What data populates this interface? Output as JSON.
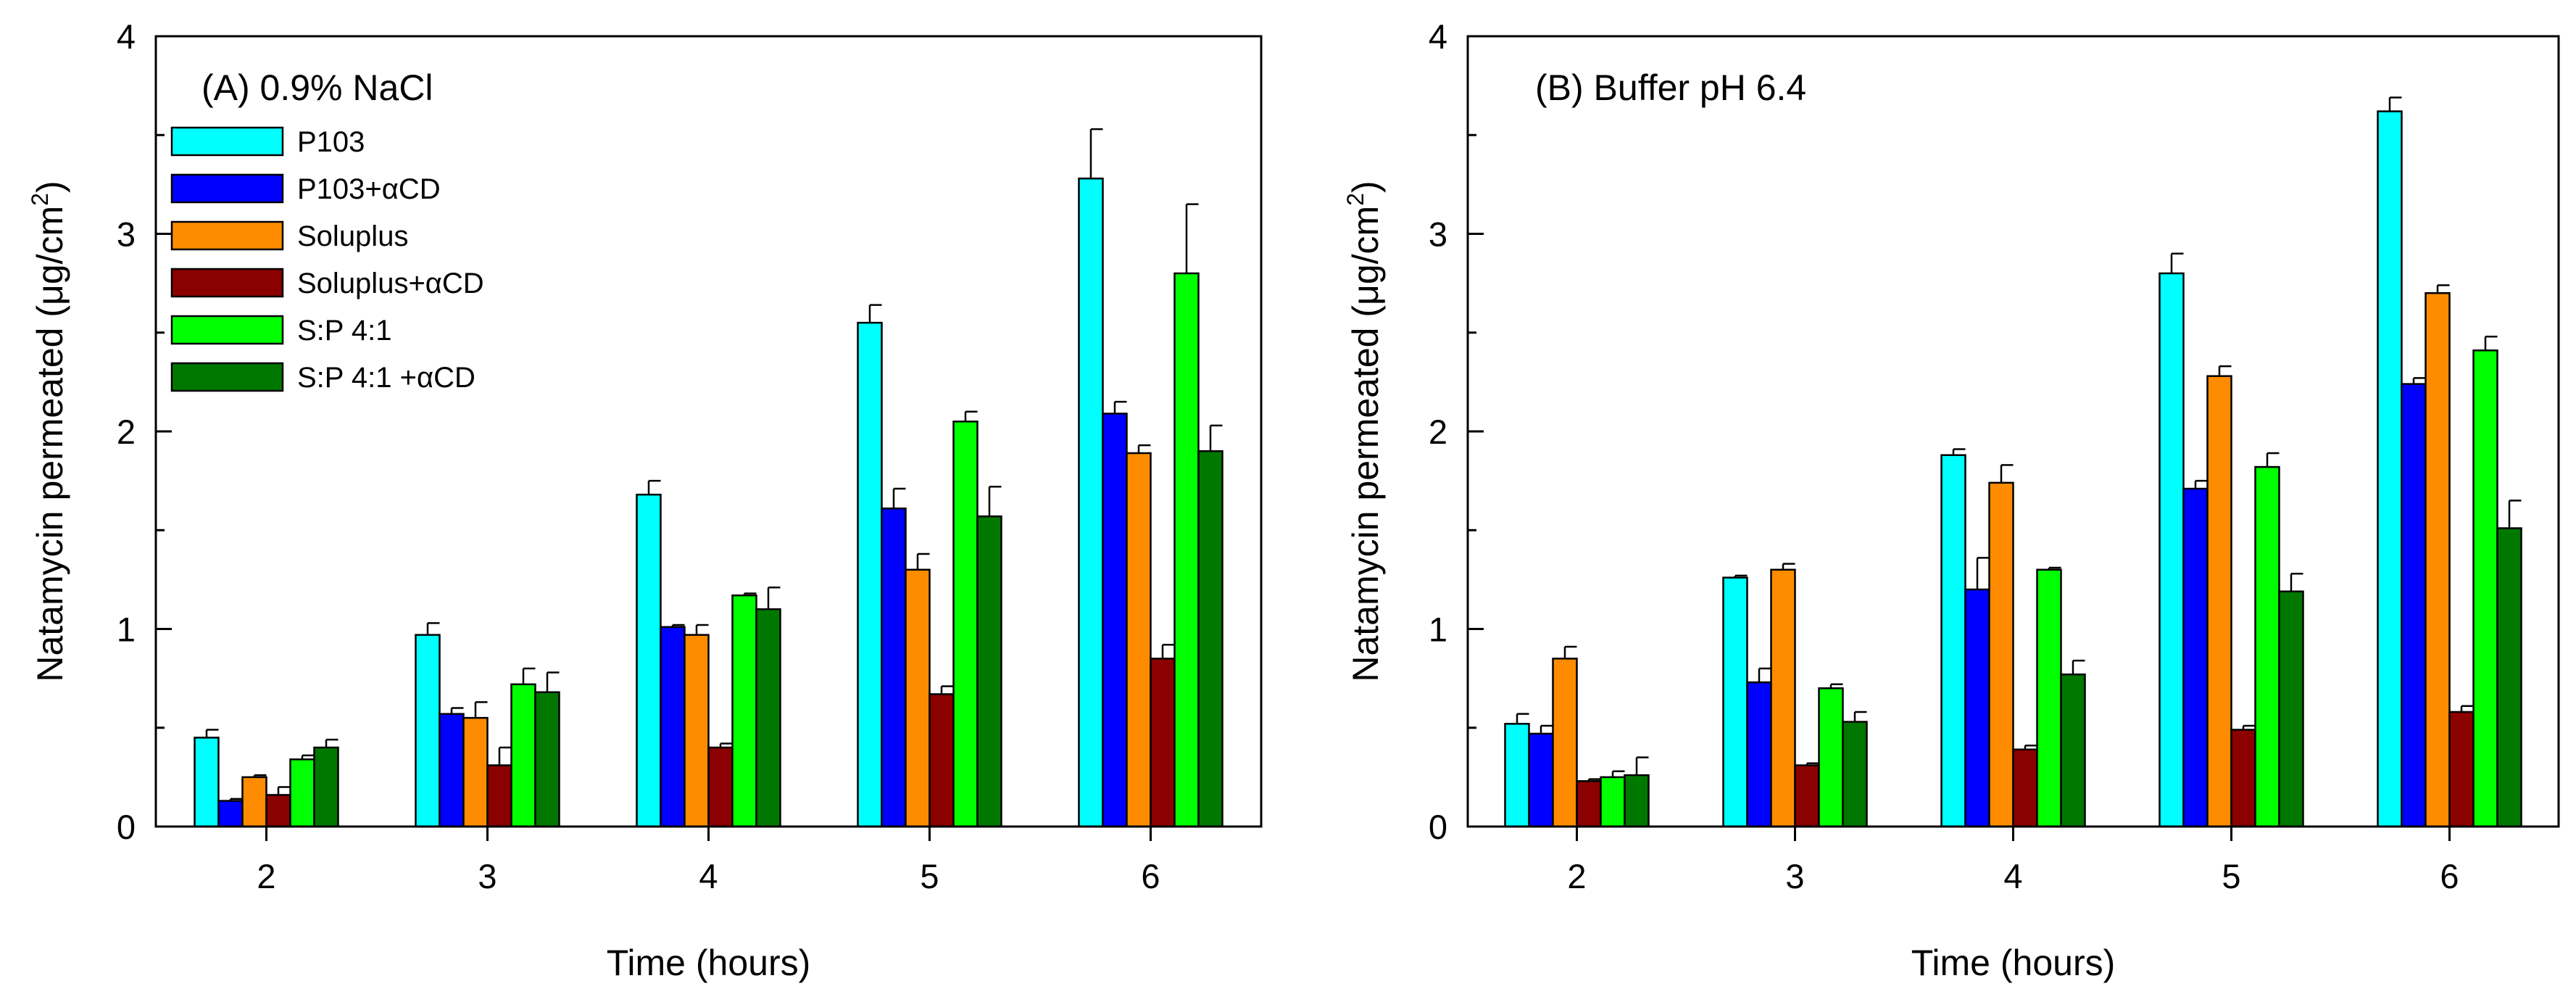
{
  "chart_data": [
    {
      "type": "bar",
      "panel_label": "(A) 0.9% NaCl",
      "xlabel": "Time (hours)",
      "ylabel_main": "Natamycin permeated (μg/cm",
      "ylabel_sup": "2",
      "ylabel_end": ")",
      "ylim": [
        0,
        4
      ],
      "yticks": [
        "0",
        "1",
        "2",
        "3",
        "4"
      ],
      "categories": [
        "2",
        "3",
        "4",
        "5",
        "6"
      ],
      "legend_position": "top-left",
      "series": [
        {
          "name": "P103",
          "color": "#00FFFF",
          "values": [
            0.45,
            0.97,
            1.68,
            2.55,
            3.28
          ],
          "errors": [
            0.04,
            0.06,
            0.07,
            0.09,
            0.25
          ]
        },
        {
          "name": "P103+αCD",
          "color": "#0000FF",
          "values": [
            0.13,
            0.57,
            1.01,
            1.61,
            2.09
          ],
          "errors": [
            0.01,
            0.03,
            0.01,
            0.1,
            0.06
          ]
        },
        {
          "name": "Soluplus",
          "color": "#FF8C00",
          "values": [
            0.25,
            0.55,
            0.97,
            1.3,
            1.89
          ],
          "errors": [
            0.01,
            0.08,
            0.05,
            0.08,
            0.04
          ]
        },
        {
          "name": "Soluplus+αCD",
          "color": "#8B0000",
          "values": [
            0.16,
            0.31,
            0.4,
            0.67,
            0.85
          ],
          "errors": [
            0.04,
            0.09,
            0.02,
            0.04,
            0.07
          ]
        },
        {
          "name": "S:P 4:1",
          "color": "#00FF00",
          "values": [
            0.34,
            0.72,
            1.17,
            2.05,
            2.8
          ],
          "errors": [
            0.02,
            0.08,
            0.01,
            0.05,
            0.35
          ]
        },
        {
          "name": "S:P 4:1 +αCD",
          "color": "#007800",
          "values": [
            0.4,
            0.68,
            1.1,
            1.57,
            1.9
          ],
          "errors": [
            0.04,
            0.1,
            0.11,
            0.15,
            0.13
          ]
        }
      ]
    },
    {
      "type": "bar",
      "panel_label": "(B) Buffer pH 6.4",
      "xlabel": "Time (hours)",
      "ylabel_main": "Natamycin permeated (μg/cm",
      "ylabel_sup": "2",
      "ylabel_end": ")",
      "ylim": [
        0,
        4
      ],
      "yticks": [
        "0",
        "1",
        "2",
        "3",
        "4"
      ],
      "categories": [
        "2",
        "3",
        "4",
        "5",
        "6"
      ],
      "legend_position": "none",
      "series": [
        {
          "name": "P103",
          "color": "#00FFFF",
          "values": [
            0.52,
            1.26,
            1.88,
            2.8,
            3.62
          ],
          "errors": [
            0.05,
            0.01,
            0.03,
            0.1,
            0.07
          ]
        },
        {
          "name": "P103+αCD",
          "color": "#0000FF",
          "values": [
            0.47,
            0.73,
            1.2,
            1.71,
            2.24
          ],
          "errors": [
            0.04,
            0.07,
            0.16,
            0.04,
            0.03
          ]
        },
        {
          "name": "Soluplus",
          "color": "#FF8C00",
          "values": [
            0.85,
            1.3,
            1.74,
            2.28,
            2.7
          ],
          "errors": [
            0.06,
            0.03,
            0.09,
            0.05,
            0.04
          ]
        },
        {
          "name": "Soluplus+αCD",
          "color": "#8B0000",
          "values": [
            0.23,
            0.31,
            0.39,
            0.49,
            0.58
          ],
          "errors": [
            0.01,
            0.01,
            0.02,
            0.02,
            0.03
          ]
        },
        {
          "name": "S:P 4:1",
          "color": "#00FF00",
          "values": [
            0.25,
            0.7,
            1.3,
            1.82,
            2.41
          ],
          "errors": [
            0.03,
            0.02,
            0.01,
            0.07,
            0.07
          ]
        },
        {
          "name": "S:P 4:1 +αCD",
          "color": "#007800",
          "values": [
            0.26,
            0.53,
            0.77,
            1.19,
            1.51
          ],
          "errors": [
            0.09,
            0.05,
            0.07,
            0.09,
            0.14
          ]
        }
      ]
    }
  ]
}
